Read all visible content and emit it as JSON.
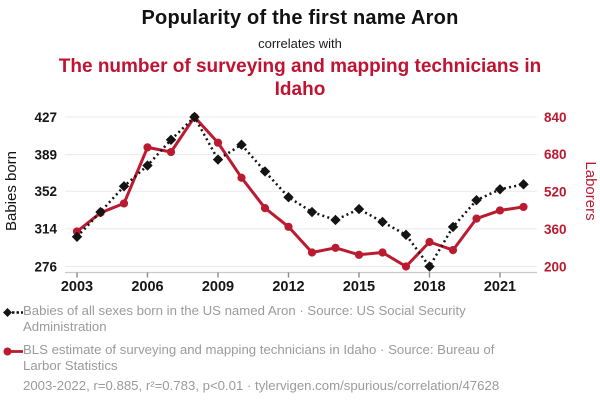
{
  "header": {
    "title": "Popularity of the first name Aron",
    "connector": "correlates with",
    "subtitle": "The number of surveying and mapping technicians in Idaho"
  },
  "colors": {
    "title_red": "#c01331",
    "line_red": "#bb1b31",
    "line_black": "#141414",
    "legend_gray": "#9b9b9b",
    "grid_gray": "#eaeaea",
    "axis_gray": "#c9c9c9"
  },
  "chart_data": {
    "type": "line",
    "x": [
      2003,
      2004,
      2005,
      2006,
      2007,
      2008,
      2009,
      2010,
      2011,
      2012,
      2013,
      2014,
      2015,
      2016,
      2017,
      2018,
      2019,
      2020,
      2021,
      2022
    ],
    "x_tick_labels": [
      "2003",
      "2006",
      "2009",
      "2012",
      "2015",
      "2018",
      "2021"
    ],
    "series": [
      {
        "name": "Babies of all sexes born in the US named Aron",
        "axis": "left",
        "color": "#141414",
        "style": "dotted-diamond",
        "values": [
          306,
          331,
          357,
          378,
          404,
          427,
          384,
          399,
          372,
          346,
          331,
          323,
          334,
          321,
          308,
          276,
          316,
          343,
          354,
          359
        ]
      },
      {
        "name": "BLS estimate of surveying and mapping technicians in Idaho",
        "axis": "right",
        "color": "#bb1b31",
        "style": "solid-circle",
        "values": [
          350,
          430,
          470,
          710,
          690,
          840,
          730,
          580,
          450,
          370,
          260,
          280,
          250,
          260,
          200,
          305,
          270,
          405,
          440,
          455
        ]
      }
    ],
    "left_axis": {
      "label": "Babies born",
      "ticks": [
        427,
        389,
        352,
        314,
        276
      ],
      "range": [
        276,
        427
      ]
    },
    "right_axis": {
      "label": "Laborers",
      "ticks": [
        840,
        680,
        520,
        360,
        200
      ],
      "range": [
        200,
        840
      ]
    },
    "grid": true,
    "legend_position": "bottom"
  },
  "legend": {
    "items": [
      {
        "label": "Babies of all sexes born in the US named Aron · Source: US Social Security Administration"
      },
      {
        "label": "BLS estimate of surveying and mapping technicians in Idaho · Source: Bureau of Larbor Statistics"
      }
    ],
    "footer": "2003-2022, r=0.885, r²=0.783, p<0.01 · tylervigen.com/spurious/correlation/47628"
  }
}
